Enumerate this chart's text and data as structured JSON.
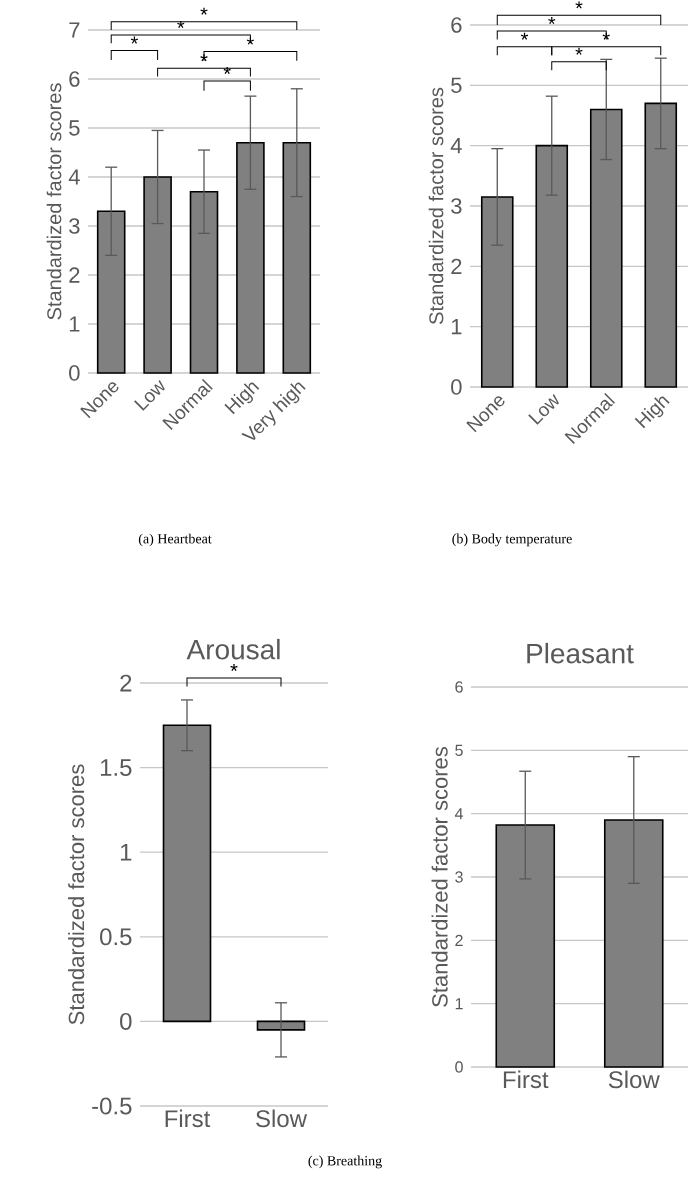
{
  "chart_data": [
    {
      "type": "bar",
      "ylabel": "Standardized factor scores",
      "categories": [
        "None",
        "Low",
        "Normal",
        "High",
        "Very high"
      ],
      "values": [
        3.3,
        4.0,
        3.7,
        4.7,
        4.7
      ],
      "errors": [
        0.9,
        0.95,
        0.85,
        0.95,
        1.1
      ],
      "color": "#808080",
      "ylim": [
        0,
        7
      ],
      "yticks": [
        0,
        1,
        2,
        3,
        4,
        5,
        6,
        7
      ],
      "grid": "y",
      "annotations": [
        "(a) Heartbeat",
        "*",
        "*",
        "*",
        "*",
        "*",
        "*"
      ]
    },
    {
      "type": "bar",
      "ylabel": "Standardized factor scores",
      "categories": [
        "None",
        "Low",
        "Normal",
        "High"
      ],
      "values": [
        3.15,
        4.0,
        4.6,
        4.7
      ],
      "errors": [
        0.8,
        0.82,
        0.83,
        0.75
      ],
      "color": "#808080",
      "ylim": [
        0,
        6
      ],
      "yticks": [
        0,
        1,
        2,
        3,
        4,
        5,
        6
      ],
      "grid": "y",
      "annotations": [
        "(b) Body temperature",
        "*",
        "*",
        "*",
        "*",
        "*"
      ]
    },
    {
      "type": "bar",
      "title": "Arousal",
      "ylabel": "Standardized factor scores",
      "categories": [
        "First",
        "Slow"
      ],
      "values": [
        1.75,
        -0.05
      ],
      "errors": [
        0.15,
        0.16
      ],
      "color": "#808080",
      "ylim": [
        -0.5,
        2
      ],
      "yticks": [
        -0.5,
        0,
        0.5,
        1,
        1.5,
        2
      ],
      "grid": "y",
      "annotations": [
        "(c) Breathing",
        "*"
      ]
    },
    {
      "type": "bar",
      "title": "Pleasant",
      "ylabel": "Standardized factor scores",
      "categories": [
        "First",
        "Slow"
      ],
      "values": [
        3.82,
        3.9
      ],
      "errors": [
        0.85,
        1.0
      ],
      "color": "#808080",
      "ylim": [
        0,
        6
      ],
      "yticks": [
        0,
        1,
        2,
        3,
        4,
        5,
        6
      ],
      "grid": "y"
    }
  ]
}
